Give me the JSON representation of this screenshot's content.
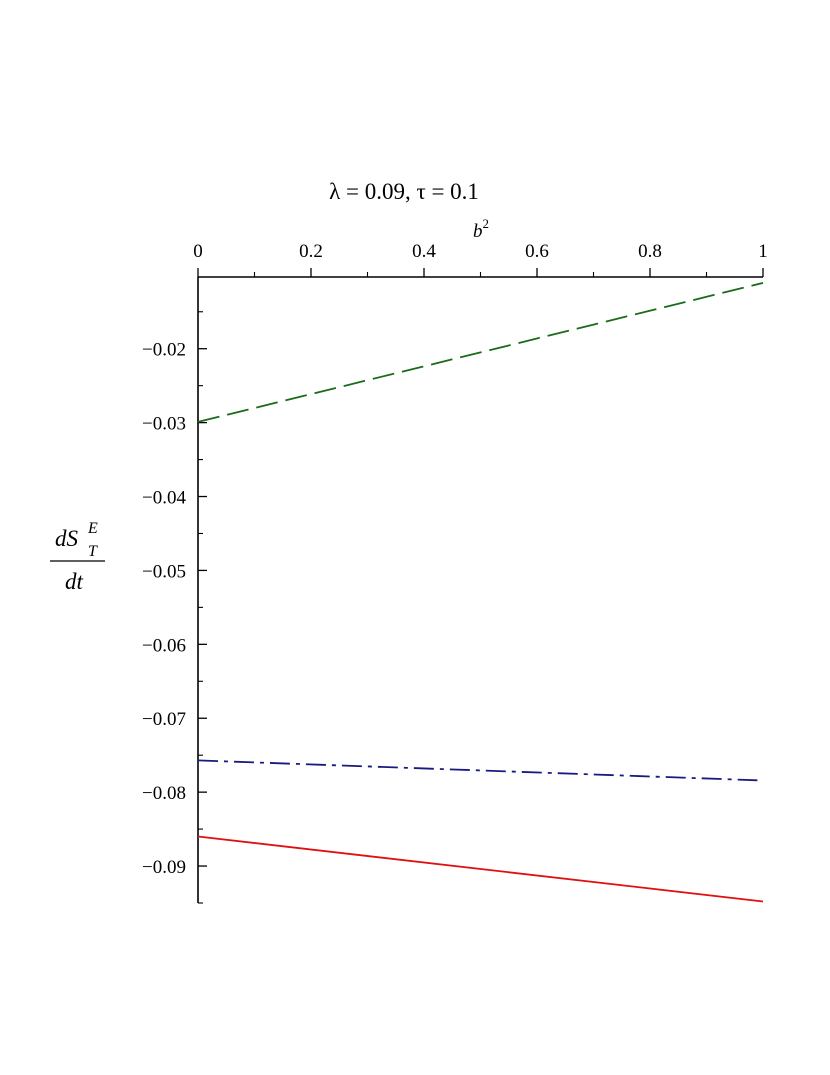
{
  "chart_data": {
    "type": "line",
    "title": "λ = 0.09, τ = 0.1",
    "xlabel": {
      "base": "b",
      "superscript": "2"
    },
    "ylabel": {
      "numerator_base": "dS",
      "numerator_sup": "E",
      "numerator_sub": "T",
      "denominator": "dt"
    },
    "xlim": [
      0,
      1
    ],
    "ylim": [
      -0.095,
      -0.0105
    ],
    "x_ticks": [
      {
        "value": 0,
        "label": "0"
      },
      {
        "value": 0.2,
        "label": "0.2"
      },
      {
        "value": 0.4,
        "label": "0.4"
      },
      {
        "value": 0.6,
        "label": "0.6"
      },
      {
        "value": 0.8,
        "label": "0.8"
      },
      {
        "value": 1,
        "label": "1"
      }
    ],
    "x_minor_ticks": [
      0.1,
      0.3,
      0.5,
      0.7,
      0.9
    ],
    "y_ticks": [
      {
        "value": -0.02,
        "label": "−0.02"
      },
      {
        "value": -0.03,
        "label": "−0.03"
      },
      {
        "value": -0.04,
        "label": "−0.04"
      },
      {
        "value": -0.05,
        "label": "−0.05"
      },
      {
        "value": -0.06,
        "label": "−0.06"
      },
      {
        "value": -0.07,
        "label": "−0.07"
      },
      {
        "value": -0.08,
        "label": "−0.08"
      },
      {
        "value": -0.09,
        "label": "−0.09"
      }
    ],
    "y_minor_ticks": [
      -0.015,
      -0.025,
      -0.035,
      -0.045,
      -0.055,
      -0.065,
      -0.075,
      -0.085,
      -0.095
    ],
    "x_axis_position": "top",
    "grid": false,
    "legend": "none",
    "series": [
      {
        "color": "#1a6b1a",
        "dash": "dashed",
        "x": [
          0,
          1
        ],
        "y": [
          -0.0299,
          -0.0111
        ]
      },
      {
        "color": "#1a1a80",
        "dash": "dashdot",
        "x": [
          0,
          0.99
        ],
        "y": [
          -0.0757,
          -0.0784
        ]
      },
      {
        "color": "#e01010",
        "dash": "solid",
        "x": [
          0,
          1
        ],
        "y": [
          -0.086,
          -0.0948
        ]
      }
    ]
  }
}
